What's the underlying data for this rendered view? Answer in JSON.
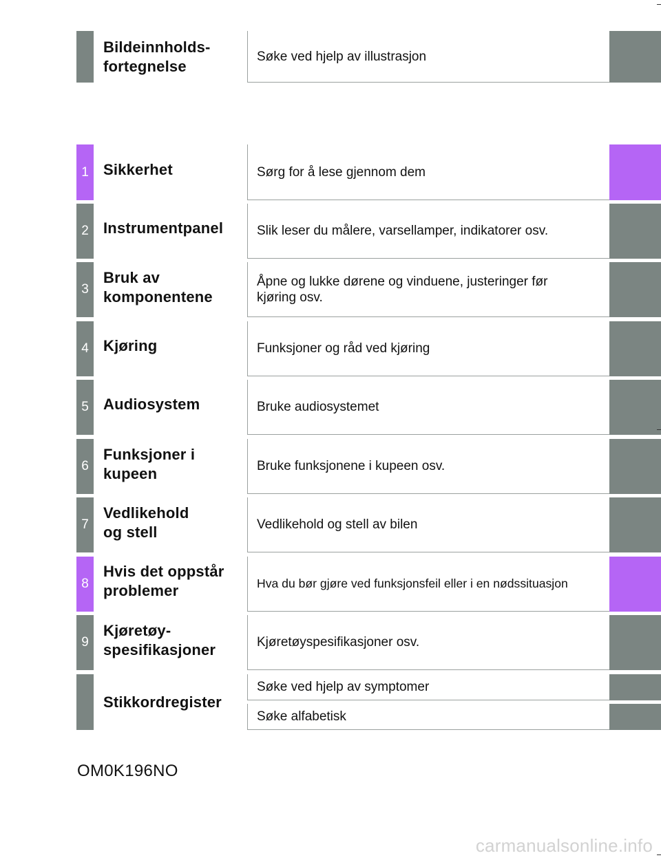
{
  "header": {
    "title": "Bildeinnholds-\nfortegnelse",
    "description": "Søke ved hjelp av illustrasjon"
  },
  "chapters": [
    {
      "number": "1",
      "title": "Sikkerhet",
      "description": "Sørg for å lese gjennom dem"
    },
    {
      "number": "2",
      "title": "Instrumentpanel",
      "description": "Slik leser du målere, varsellamper, indikatorer osv."
    },
    {
      "number": "3",
      "title": "Bruk av\nkomponentene",
      "description": "Åpne og lukke dørene og vinduene, justeringer før kjøring osv."
    },
    {
      "number": "4",
      "title": "Kjøring",
      "description": "Funksjoner og råd ved kjøring"
    },
    {
      "number": "5",
      "title": "Audiosystem",
      "description": "Bruke audiosystemet"
    },
    {
      "number": "6",
      "title": "Funksjoner i\nkupeen",
      "description": "Bruke funksjonene i kupeen osv."
    },
    {
      "number": "7",
      "title": "Vedlikehold\nog stell",
      "description": "Vedlikehold og stell av bilen"
    },
    {
      "number": "8",
      "title": "Hvis det oppstår\nproblemer",
      "description": "Hva du bør gjøre ved funksjonsfeil eller i en nødssituasjon"
    },
    {
      "number": "9",
      "title": "Kjøretøy-\nspesifikasjoner",
      "description": "Kjøretøyspesifikasjoner osv."
    }
  ],
  "index": {
    "title": "Stikkordregister",
    "search_symptoms": "Søke ved hjelp av symptomer",
    "search_alphabetic": "Søke alfabetisk"
  },
  "footer": {
    "code": "OM0K196NO",
    "watermark": "carmanualsonline.info"
  },
  "colors": {
    "gray_tab": "#7b8582",
    "purple_tab": "#b565f5"
  }
}
